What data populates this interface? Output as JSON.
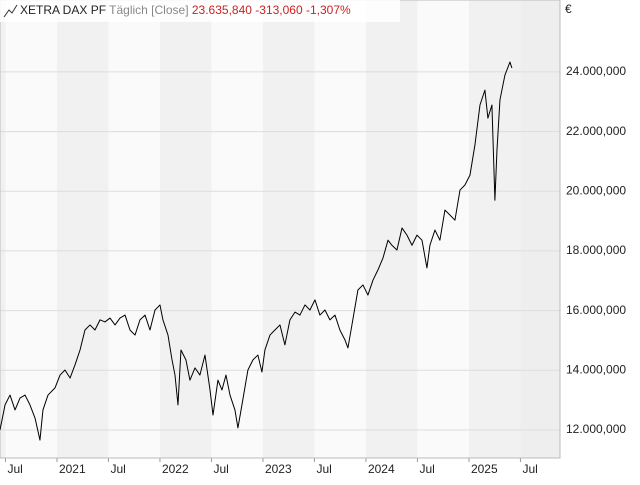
{
  "chart_data": {
    "type": "line",
    "title": "XETRA DAX PF",
    "subtitle": "Täglich [Close]",
    "last_price": "23.635,840",
    "change": "-313,060",
    "change_percent": "-1,307%",
    "currency": "€",
    "color": "#000000",
    "change_color": "#cc2222",
    "grid": true,
    "y_axis_side": "right",
    "x": [
      2020.447,
      2020.496,
      2020.544,
      2020.593,
      2020.641,
      2020.69,
      2020.738,
      2020.787,
      2020.835,
      2020.864,
      2020.913,
      2020.981,
      2021.03,
      2021.078,
      2021.127,
      2021.175,
      2021.224,
      2021.272,
      2021.321,
      2021.369,
      2021.418,
      2021.466,
      2021.515,
      2021.564,
      2021.612,
      2021.661,
      2021.709,
      2021.758,
      2021.806,
      2021.855,
      2021.903,
      2021.952,
      2022.0,
      2022.029,
      2022.078,
      2022.117,
      2022.146,
      2022.175,
      2022.204,
      2022.252,
      2022.291,
      2022.34,
      2022.388,
      2022.437,
      2022.486,
      2022.515,
      2022.563,
      2022.602,
      2022.641,
      2022.68,
      2022.728,
      2022.757,
      2022.796,
      2022.854,
      2022.903,
      2022.951,
      2022.99,
      2023.019,
      2023.068,
      2023.116,
      2023.165,
      2023.213,
      2023.262,
      2023.311,
      2023.359,
      2023.408,
      2023.456,
      2023.505,
      2023.553,
      2023.602,
      2023.65,
      2023.699,
      2023.747,
      2023.796,
      2023.825,
      2023.864,
      2023.922,
      2023.971,
      2024.019,
      2024.068,
      2024.116,
      2024.165,
      2024.214,
      2024.252,
      2024.301,
      2024.35,
      2024.398,
      2024.447,
      2024.495,
      2024.544,
      2024.592,
      2024.621,
      2024.67,
      2024.718,
      2024.767,
      2024.816,
      2024.864,
      2024.913,
      2024.961,
      2025.01,
      2025.058,
      2025.107,
      2025.155,
      2025.184,
      2025.223,
      2025.252,
      2025.272,
      2025.301,
      2025.349,
      2025.398,
      2025.417
    ],
    "values": [
      12000000,
      12840000,
      13170000,
      12670000,
      13070000,
      13170000,
      12840000,
      12400000,
      11660000,
      12670000,
      13170000,
      13410000,
      13840000,
      14010000,
      13740000,
      14180000,
      14680000,
      15350000,
      15520000,
      15350000,
      15690000,
      15620000,
      15750000,
      15520000,
      15750000,
      15850000,
      15350000,
      15180000,
      15690000,
      15850000,
      15350000,
      16020000,
      16190000,
      15690000,
      15180000,
      14350000,
      13840000,
      12840000,
      14680000,
      14350000,
      13670000,
      14080000,
      13840000,
      14510000,
      13340000,
      12500000,
      13670000,
      13340000,
      13840000,
      13170000,
      12670000,
      12070000,
      12840000,
      14010000,
      14350000,
      14510000,
      13940000,
      14680000,
      15180000,
      15350000,
      15520000,
      14850000,
      15690000,
      15950000,
      15850000,
      16190000,
      16020000,
      16360000,
      15850000,
      16020000,
      15690000,
      15850000,
      15350000,
      15020000,
      14750000,
      15520000,
      16690000,
      16860000,
      16520000,
      17020000,
      17360000,
      17760000,
      18360000,
      18190000,
      18030000,
      18770000,
      18530000,
      18190000,
      18530000,
      18360000,
      17430000,
      18190000,
      18700000,
      18360000,
      19370000,
      19200000,
      19030000,
      20040000,
      20210000,
      20540000,
      21550000,
      22890000,
      23390000,
      22450000,
      22890000,
      19700000,
      21380000,
      23060000,
      23890000,
      24330000,
      24130000
    ],
    "xlim": [
      2020.447,
      2025.884
    ],
    "xticks": [
      {
        "value": 2020.5,
        "label": "Jul"
      },
      2021,
      {
        "value": 2021.5,
        "label": "Jul"
      },
      2022,
      {
        "value": 2022.5,
        "label": "Jul"
      },
      2023,
      {
        "value": 2023.5,
        "label": "Jul"
      },
      2024,
      {
        "value": 2024.5,
        "label": "Jul"
      },
      2025,
      {
        "value": 2025.5,
        "label": "Jul"
      }
    ],
    "ylim": [
      11060000,
      26410000
    ],
    "yticks": [
      {
        "value": 12000000,
        "label": "12.000,000"
      },
      {
        "value": 14000000,
        "label": "14.000,000"
      },
      {
        "value": 16000000,
        "label": "16.000,000"
      },
      {
        "value": 18000000,
        "label": "18.000,000"
      },
      {
        "value": 20000000,
        "label": "20.000,000"
      },
      {
        "value": 22000000,
        "label": "22.000,000"
      },
      {
        "value": 24000000,
        "label": "24.000,000"
      }
    ]
  }
}
